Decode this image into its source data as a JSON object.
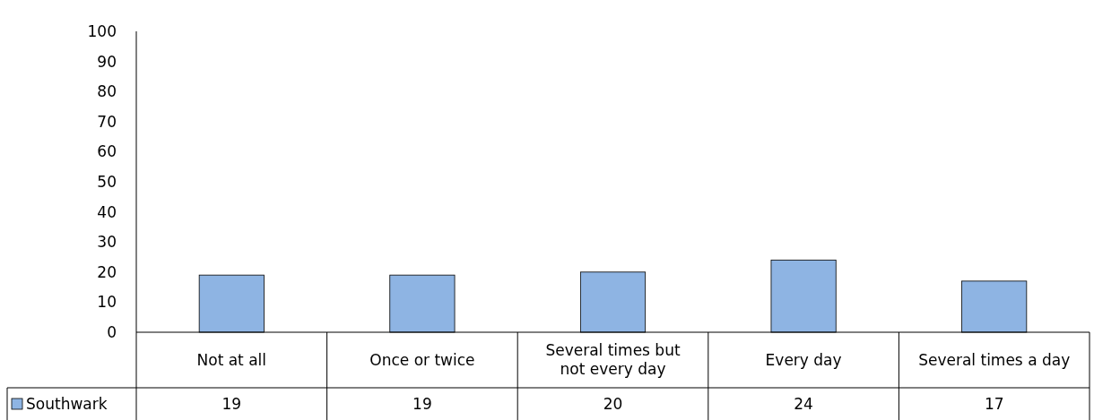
{
  "chart_data": {
    "type": "bar",
    "categories": [
      "Not at all",
      "Once or twice",
      "Several times but not every day",
      "Every day",
      "Several times a day"
    ],
    "series": [
      {
        "name": "Southwark",
        "color": "#8eb4e3",
        "values": [
          19,
          19,
          20,
          24,
          17
        ]
      }
    ],
    "ylim": [
      0,
      100
    ],
    "yticks": [
      0,
      10,
      20,
      30,
      40,
      50,
      60,
      70,
      80,
      90,
      100
    ],
    "grid": false,
    "legend": "bottom",
    "data_labels": true
  }
}
